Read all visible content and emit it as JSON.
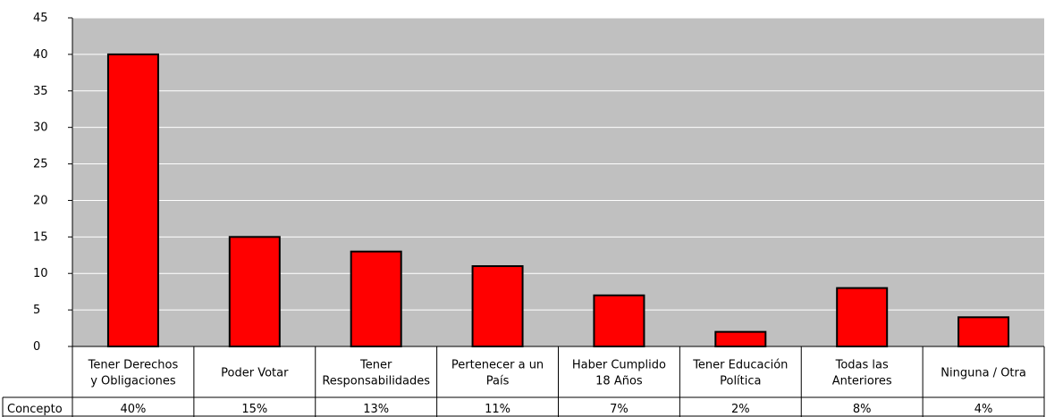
{
  "chart_data": {
    "type": "bar",
    "categories": [
      [
        "Tener Derechos",
        "y Obligaciones"
      ],
      [
        "Poder Votar"
      ],
      [
        "Tener",
        "Responsabilidades"
      ],
      [
        "Pertenecer a un",
        "País"
      ],
      [
        "Haber Cumplido",
        "18 Años"
      ],
      [
        "Tener Educación",
        "Política"
      ],
      [
        "Todas las",
        "Anteriores"
      ],
      [
        "Ninguna / Otra"
      ]
    ],
    "values": [
      40,
      15,
      13,
      11,
      7,
      2,
      8,
      4
    ],
    "ylim": [
      0,
      45
    ],
    "yticks": [
      0,
      5,
      10,
      15,
      20,
      25,
      30,
      35,
      40,
      45
    ],
    "grid": true,
    "colors": {
      "plot_bg": "#c0c0c0",
      "bar": "#ff0000",
      "bar_stroke": "#000000",
      "grid": "#ffffff"
    },
    "data_table": {
      "row_label": "Concepto",
      "cells": [
        "40%",
        "15%",
        "13%",
        "11%",
        "7%",
        "2%",
        "8%",
        "4%"
      ]
    }
  }
}
